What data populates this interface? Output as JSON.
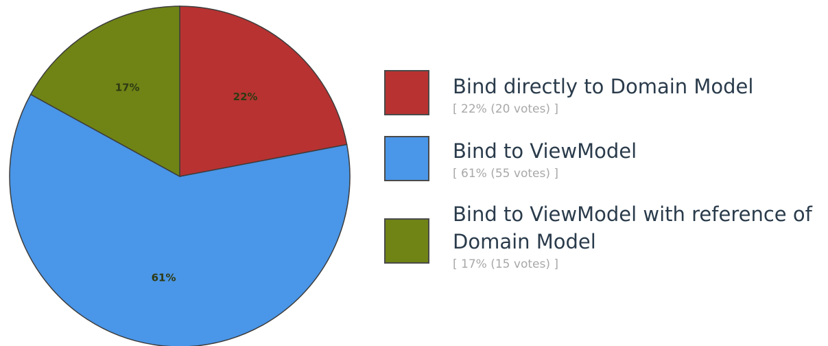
{
  "chart_data": {
    "type": "pie",
    "slices": [
      {
        "name": "Bind directly to Domain Model",
        "value": 22,
        "votes": 20,
        "label": "22%",
        "detail": "[ 22% (20 votes) ]",
        "color": "#b83232"
      },
      {
        "name": "Bind to ViewModel",
        "value": 61,
        "votes": 55,
        "label": "61%",
        "detail": "[ 61% (55 votes) ]",
        "color": "#4a96e8"
      },
      {
        "name": "Bind to ViewModel with reference of Domain Model",
        "value": 17,
        "votes": 15,
        "label": "17%",
        "detail": "[ 17% (15 votes) ]",
        "color": "#6f8415"
      }
    ],
    "legend_position": "right",
    "start_angle": "top",
    "direction": "clockwise"
  },
  "legend": {
    "items": [
      {
        "label": "Bind directly to Domain Model",
        "detail": "[ 22% (20 votes) ]"
      },
      {
        "label": "Bind to ViewModel",
        "detail": "[ 61% (55 votes) ]"
      },
      {
        "label": "Bind to ViewModel with reference of Domain Model",
        "detail": "[ 17% (15 votes) ]"
      }
    ]
  }
}
